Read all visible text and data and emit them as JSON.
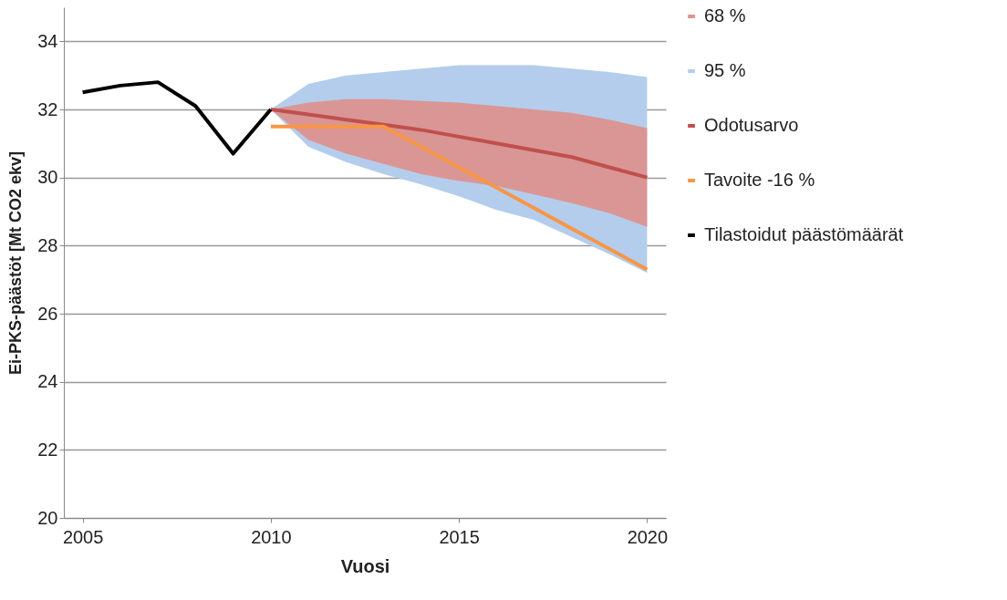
{
  "chart_data": {
    "type": "line",
    "xlabel": "Vuosi",
    "ylabel": "Ei-PKS-päästöt  [Mt CO2 ekv]",
    "xlim": [
      2004.5,
      2020.5
    ],
    "xticks": [
      2005,
      2010,
      2015,
      2020
    ],
    "ylim": [
      20,
      35
    ],
    "yticks": [
      20,
      22,
      24,
      26,
      28,
      30,
      32,
      34
    ],
    "grid": "y",
    "legend": "right",
    "series": [
      {
        "name": "68 %",
        "type": "area",
        "color": "#da9694",
        "x": [
          2010,
          2011,
          2012,
          2013,
          2014,
          2015,
          2016,
          2017,
          2018,
          2019,
          2020
        ],
        "values": [
          null,
          null,
          null,
          null,
          null,
          null,
          null,
          null,
          null,
          null,
          null
        ],
        "lower": [
          32.0,
          31.1,
          30.7,
          30.4,
          30.1,
          29.9,
          29.75,
          29.5,
          29.25,
          28.95,
          28.55
        ],
        "upper": [
          32.0,
          32.2,
          32.3,
          32.3,
          32.25,
          32.2,
          32.1,
          32.0,
          31.9,
          31.7,
          31.45
        ]
      },
      {
        "name": "95 %",
        "type": "area",
        "color": "#b4cdec",
        "x": [
          2010,
          2011,
          2012,
          2013,
          2014,
          2015,
          2016,
          2017,
          2018,
          2019,
          2020
        ],
        "values": [
          null,
          null,
          null,
          null,
          null,
          null,
          null,
          null,
          null,
          null,
          null
        ],
        "lower": [
          32.0,
          30.9,
          30.45,
          30.1,
          29.8,
          29.45,
          29.05,
          28.75,
          28.25,
          27.75,
          27.2
        ],
        "upper": [
          32.0,
          32.75,
          33.0,
          33.1,
          33.2,
          33.3,
          33.3,
          33.3,
          33.2,
          33.1,
          32.95
        ]
      },
      {
        "name": "Odotusarvo",
        "color": "#c0504d",
        "x": [
          2010,
          2011,
          2012,
          2013,
          2014,
          2015,
          2016,
          2017,
          2018,
          2019,
          2020
        ],
        "values": [
          32.0,
          31.85,
          31.7,
          31.55,
          31.4,
          31.2,
          31.0,
          30.8,
          30.6,
          30.3,
          30.0
        ]
      },
      {
        "name": "Tavoite -16 %",
        "color": "#f79646",
        "x": [
          2010,
          2013,
          2014,
          2015,
          2016,
          2017,
          2018,
          2019,
          2020
        ],
        "values": [
          31.5,
          31.5,
          30.9,
          30.3,
          29.7,
          29.1,
          28.5,
          27.9,
          27.3
        ]
      },
      {
        "name": "Tilastoidut päästömäärät",
        "color": "#000000",
        "x": [
          2005,
          2006,
          2007,
          2008,
          2009,
          2010
        ],
        "values": [
          32.5,
          32.7,
          32.8,
          32.1,
          30.7,
          32.0
        ]
      }
    ]
  }
}
